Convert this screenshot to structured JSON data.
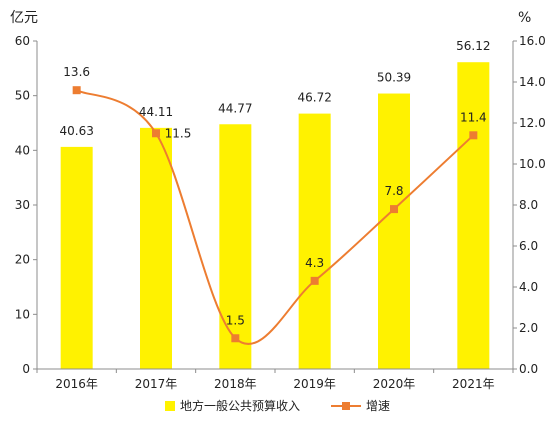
{
  "chart_data": {
    "type": "bar+line",
    "categories": [
      "2016年",
      "2017年",
      "2018年",
      "2019年",
      "2020年",
      "2021年"
    ],
    "series": [
      {
        "name": "地方一般公共预算收入",
        "type": "bar",
        "axis": "left",
        "values": [
          40.63,
          44.11,
          44.77,
          46.72,
          50.39,
          56.12
        ],
        "labels": [
          "40.63",
          "44.11",
          "44.77",
          "46.72",
          "50.39",
          "56.12"
        ],
        "color": "#FFF200"
      },
      {
        "name": "增速",
        "type": "line",
        "axis": "right",
        "smooth": true,
        "values": [
          13.6,
          11.5,
          1.5,
          4.3,
          7.8,
          11.4
        ],
        "labels": [
          "13.6",
          "11.5",
          "1.5",
          "4.3",
          "7.8",
          "11.4"
        ],
        "color": "#ED7D31"
      }
    ],
    "y_left": {
      "unit_label": "亿元",
      "ylim": [
        0,
        60
      ],
      "ticks": [
        "0",
        "10",
        "20",
        "30",
        "40",
        "50",
        "60"
      ]
    },
    "y_right": {
      "unit_label": "%",
      "ylim": [
        0,
        16
      ],
      "ticks": [
        "0.0",
        "2.0",
        "4.0",
        "6.0",
        "8.0",
        "10.0",
        "12.0",
        "14.0",
        "16.0"
      ]
    },
    "grid": false,
    "legend": "bottom"
  }
}
